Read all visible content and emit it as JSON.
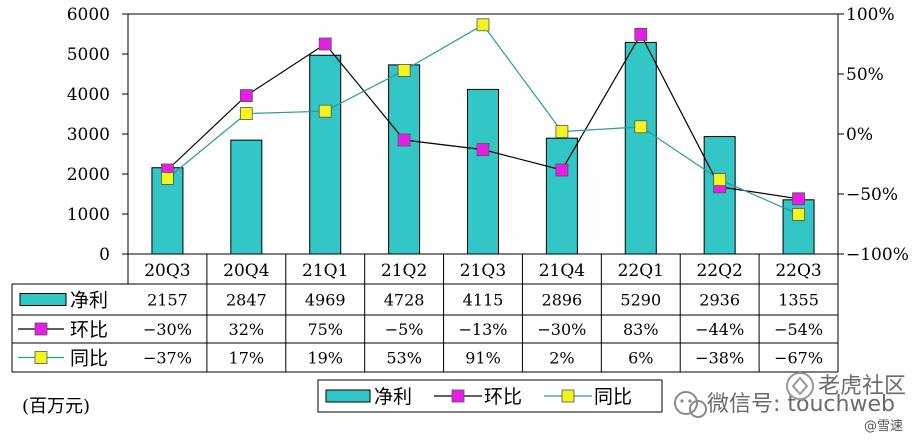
{
  "chart_data": {
    "type": "bar",
    "categories": [
      "20Q3",
      "20Q4",
      "21Q1",
      "21Q2",
      "21Q3",
      "21Q4",
      "22Q1",
      "22Q2",
      "22Q3"
    ],
    "series": [
      {
        "name": "净利",
        "kind": "bar",
        "axis": "left",
        "values": [
          2157,
          2847,
          4969,
          4728,
          4115,
          2896,
          5290,
          2936,
          1355
        ],
        "labels": [
          "2157",
          "2847",
          "4969",
          "4728",
          "4115",
          "2896",
          "5290",
          "2936",
          "1355"
        ]
      },
      {
        "name": "环比",
        "kind": "line",
        "axis": "right",
        "values": [
          -30,
          32,
          75,
          -5,
          -13,
          -30,
          83,
          -44,
          -54
        ],
        "labels": [
          "-30%",
          "32%",
          "75%",
          "-5%",
          "-13%",
          "-30%",
          "83%",
          "-44%",
          "-54%"
        ]
      },
      {
        "name": "同比",
        "kind": "line",
        "axis": "right",
        "values": [
          -37,
          17,
          19,
          53,
          91,
          2,
          6,
          -38,
          -67
        ],
        "labels": [
          "-37%",
          "17%",
          "19%",
          "53%",
          "91%",
          "2%",
          "6%",
          "-38%",
          "-67%"
        ]
      }
    ],
    "y_left": {
      "range": [
        0,
        6000
      ],
      "ticks": [
        0,
        1000,
        2000,
        3000,
        4000,
        5000,
        6000
      ],
      "tick_labels": [
        "0",
        "1000",
        "2000",
        "3000",
        "4000",
        "5000",
        "6000"
      ]
    },
    "y_right": {
      "range": [
        -100,
        100
      ],
      "ticks": [
        -100,
        -50,
        0,
        50,
        100
      ],
      "tick_labels": [
        "-100%",
        "-50%",
        "0%",
        "50%",
        "100%"
      ]
    },
    "unit_label": "(百万元)",
    "legend": {
      "placement": "bottom",
      "items": [
        "净利",
        "环比",
        "同比"
      ]
    },
    "grid": false
  },
  "colors": {
    "bar_fill": "#33c6c6",
    "bar_stroke": "#000000",
    "mom_line": "#000000",
    "mom_marker": "#e61ee6",
    "yoy_line": "#2a9aa0",
    "yoy_marker": "#f5f51e"
  },
  "watermark": {
    "text": "微信号: touchweb",
    "brand": "老虎社区",
    "handle": "@雪速"
  }
}
